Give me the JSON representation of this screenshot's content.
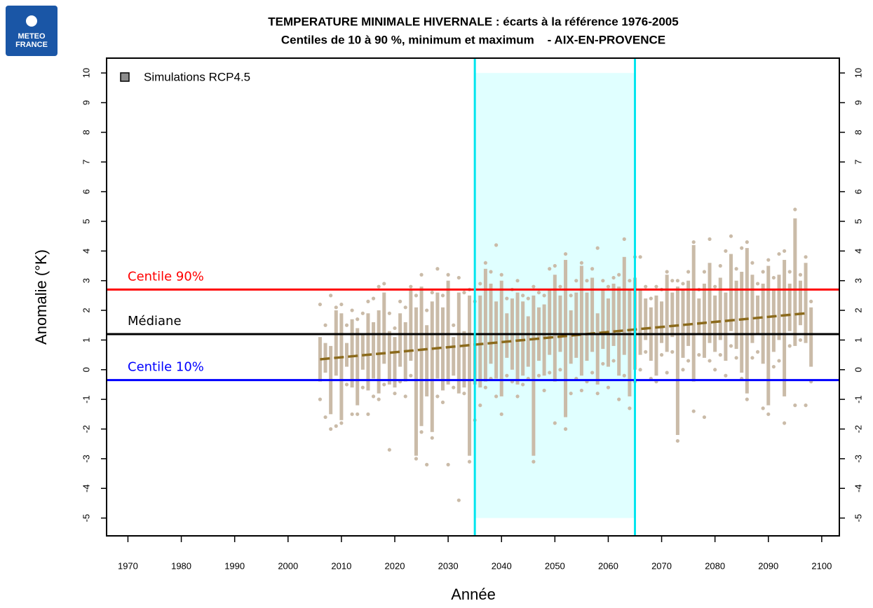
{
  "logo": {
    "lines": [
      "METEO",
      "FRANCE"
    ]
  },
  "chart_data": {
    "type": "range",
    "title": "TEMPERATURE MINIMALE HIVERNALE : écarts à la référence 1976-2005",
    "subtitle": "Centiles de 10 à 90 %, minimum et maximum    - AIX-EN-PROVENCE",
    "x_label": "Année",
    "y_label": "Anomalie (°K)",
    "xlim": [
      1966,
      2103.3
    ],
    "xticks": [
      1970,
      1980,
      1990,
      2000,
      2010,
      2020,
      2030,
      2040,
      2050,
      2060,
      2070,
      2080,
      2090,
      2100
    ],
    "ylim": [
      -5.6,
      10.5
    ],
    "yticks": [
      -5,
      -4,
      -3,
      -2,
      -1,
      0,
      1,
      2,
      3,
      4,
      5,
      6,
      7,
      8,
      9,
      10
    ],
    "legend_position": "top-left",
    "x": [
      2006,
      2007,
      2008,
      2009,
      2010,
      2011,
      2012,
      2013,
      2014,
      2015,
      2016,
      2017,
      2018,
      2019,
      2020,
      2021,
      2022,
      2023,
      2024,
      2025,
      2026,
      2027,
      2028,
      2029,
      2030,
      2031,
      2032,
      2033,
      2034,
      2035,
      2036,
      2037,
      2038,
      2039,
      2040,
      2041,
      2042,
      2043,
      2044,
      2045,
      2046,
      2047,
      2048,
      2049,
      2050,
      2051,
      2052,
      2053,
      2054,
      2055,
      2056,
      2057,
      2058,
      2059,
      2060,
      2061,
      2062,
      2063,
      2064,
      2065,
      2066,
      2067,
      2068,
      2069,
      2070,
      2071,
      2072,
      2073,
      2074,
      2075,
      2076,
      2077,
      2078,
      2079,
      2080,
      2081,
      2082,
      2083,
      2084,
      2085,
      2086,
      2087,
      2088,
      2089,
      2090,
      2091,
      2092,
      2093,
      2094,
      2095,
      2096,
      2097,
      2098
    ],
    "series": [
      {
        "name": "Simulations RCP4.5",
        "color": "#cabba8",
        "legend_color": "#8c8c8c",
        "p10": [
          -0.4,
          -0.1,
          -1.5,
          -0.2,
          -1.7,
          0.1,
          -0.6,
          -1.2,
          0.0,
          -0.7,
          -0.3,
          -0.8,
          0.2,
          -0.5,
          -0.6,
          0.1,
          -0.4,
          0.3,
          -2.9,
          -1.9,
          -0.9,
          -2.1,
          -0.3,
          -0.7,
          -0.5,
          -0.2,
          -0.8,
          -0.6,
          -2.9,
          -0.5,
          -0.6,
          -0.4,
          0.2,
          -0.3,
          -0.9,
          0.4,
          0.0,
          -0.5,
          -0.2,
          0.1,
          -2.9,
          0.3,
          -0.2,
          0.5,
          -0.4,
          0.6,
          -1.6,
          0.2,
          0.4,
          -0.2,
          0.3,
          0.6,
          -0.5,
          0.7,
          0.1,
          0.8,
          -0.2,
          0.5,
          -0.9,
          0.0,
          0.5,
          1.0,
          0.3,
          -0.2,
          0.9,
          0.6,
          1.1,
          -2.2,
          0.4,
          0.8,
          -0.4,
          1.2,
          0.4,
          0.9,
          0.6,
          1.0,
          0.3,
          1.3,
          0.7,
          -0.1,
          -0.8,
          0.9,
          1.2,
          0.2,
          -1.2,
          0.6,
          1.0,
          -0.9,
          1.3,
          0.8,
          1.5,
          0.9,
          0.1
        ],
        "p90": [
          1.1,
          0.9,
          0.8,
          2.0,
          1.9,
          0.9,
          1.7,
          1.4,
          1.2,
          1.9,
          1.6,
          2.0,
          2.6,
          1.3,
          1.1,
          1.9,
          1.6,
          2.7,
          2.1,
          2.8,
          1.5,
          2.3,
          2.6,
          2.1,
          3.0,
          1.1,
          2.6,
          1.3,
          2.5,
          1.2,
          2.5,
          3.4,
          2.9,
          2.3,
          3.0,
          1.9,
          2.4,
          2.6,
          2.3,
          1.8,
          2.5,
          2.1,
          2.2,
          2.7,
          3.2,
          2.5,
          3.7,
          2.0,
          2.6,
          3.5,
          2.6,
          3.1,
          1.9,
          2.7,
          2.4,
          2.9,
          2.8,
          3.8,
          2.7,
          3.1,
          2.7,
          2.4,
          2.1,
          2.5,
          2.3,
          3.2,
          2.6,
          2.8,
          2.7,
          3.0,
          4.2,
          2.4,
          2.9,
          3.6,
          2.5,
          3.1,
          2.6,
          3.9,
          3.0,
          3.3,
          4.1,
          3.2,
          2.5,
          2.9,
          3.5,
          2.7,
          3.2,
          3.7,
          2.9,
          5.1,
          3.0,
          3.6,
          2.1
        ],
        "min": [
          -1.0,
          -1.6,
          -2.0,
          -1.9,
          -1.8,
          -0.5,
          -1.5,
          -1.5,
          -0.6,
          -1.5,
          -0.9,
          -1.0,
          -0.5,
          -2.7,
          -0.8,
          -0.4,
          -0.9,
          -0.2,
          -3.0,
          -2.1,
          -3.2,
          -2.3,
          -0.9,
          -1.1,
          -3.2,
          -0.6,
          -4.4,
          -0.8,
          -3.1,
          -1.7,
          -1.2,
          -0.6,
          -0.3,
          -0.9,
          -1.5,
          -0.2,
          -0.4,
          -0.9,
          -0.5,
          -0.3,
          -3.1,
          -0.2,
          -0.7,
          -0.1,
          -1.8,
          0.0,
          -2.0,
          -0.8,
          -0.3,
          -0.7,
          -0.4,
          -0.1,
          -0.8,
          0.2,
          -0.6,
          0.3,
          -1.0,
          -0.2,
          -1.3,
          -0.4,
          0.0,
          0.6,
          -0.3,
          -0.4,
          0.5,
          -0.1,
          0.6,
          -2.4,
          0.0,
          0.3,
          -1.4,
          0.5,
          -1.6,
          0.3,
          0.0,
          0.5,
          -0.2,
          0.8,
          0.4,
          -0.3,
          -1.0,
          0.4,
          0.6,
          -1.3,
          -1.5,
          0.1,
          0.3,
          -1.8,
          0.8,
          -1.2,
          1.0,
          -1.2,
          -0.4
        ],
        "max": [
          2.2,
          1.5,
          2.5,
          2.1,
          2.2,
          1.5,
          2.0,
          1.7,
          1.9,
          2.3,
          2.4,
          2.8,
          2.9,
          1.9,
          1.4,
          2.3,
          2.1,
          2.8,
          2.5,
          3.2,
          2.0,
          2.6,
          3.4,
          2.5,
          3.2,
          1.5,
          3.1,
          2.6,
          2.7,
          2.3,
          2.9,
          3.6,
          3.3,
          4.2,
          3.2,
          2.4,
          2.7,
          3.0,
          2.5,
          2.4,
          2.8,
          2.6,
          2.5,
          3.4,
          3.5,
          2.8,
          3.9,
          2.5,
          3.0,
          3.6,
          3.0,
          3.4,
          4.1,
          3.0,
          2.8,
          3.1,
          3.2,
          4.4,
          3.0,
          3.8,
          3.8,
          2.8,
          2.4,
          2.8,
          2.7,
          3.3,
          3.0,
          3.0,
          2.9,
          3.3,
          4.3,
          2.7,
          3.3,
          4.4,
          2.8,
          3.5,
          4.0,
          4.5,
          3.4,
          4.1,
          4.3,
          3.6,
          2.9,
          3.3,
          3.7,
          3.1,
          3.9,
          4.0,
          3.3,
          5.4,
          3.2,
          3.8,
          2.3
        ]
      }
    ],
    "trend": {
      "color": "#8b6a1c",
      "x": [
        2006,
        2097
      ],
      "values": [
        0.35,
        1.9
      ]
    },
    "reference_lines": [
      {
        "label": "Centile 90%",
        "value": 2.7,
        "color": "#ff0000"
      },
      {
        "label": "Médiane",
        "value": 1.2,
        "color": "#000000"
      },
      {
        "label": "Centile 10%",
        "value": -0.35,
        "color": "#0000ff"
      }
    ],
    "period": {
      "x": [
        2035,
        2065
      ],
      "y": [
        -5,
        10
      ],
      "line_color": "#00e5ee",
      "fill": "#e0ffff"
    }
  }
}
